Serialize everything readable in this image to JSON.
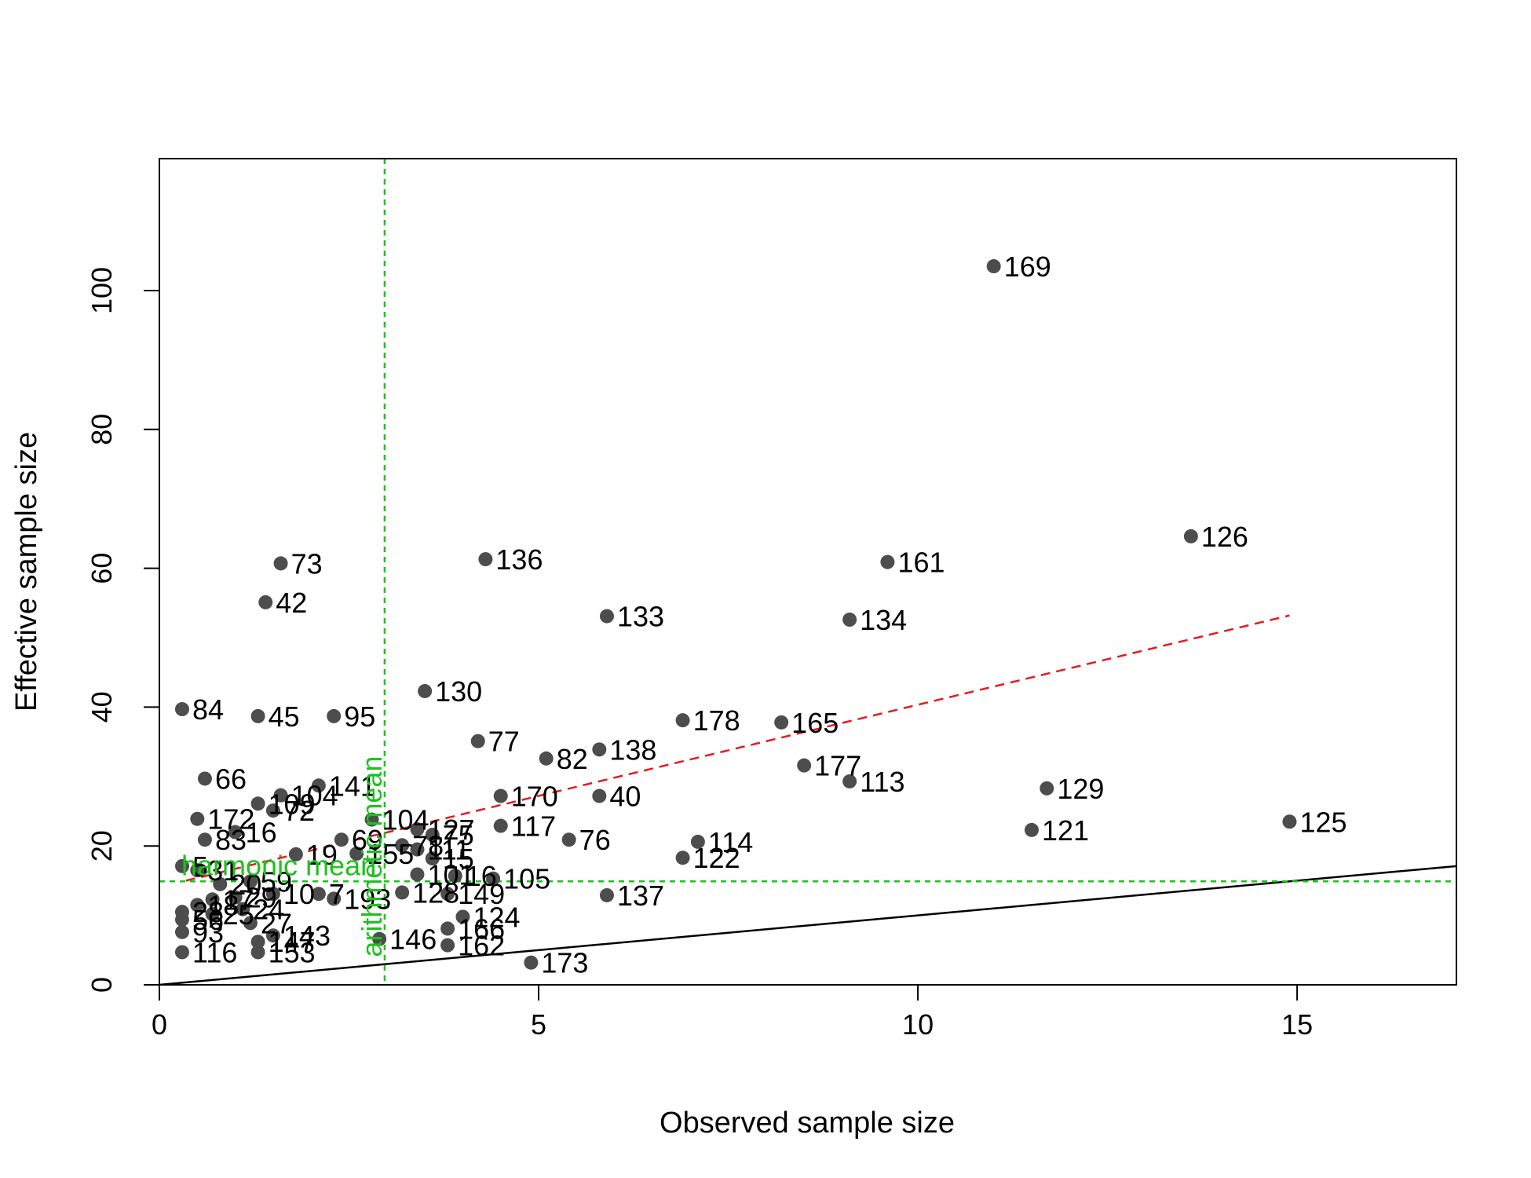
{
  "chart_data": {
    "type": "scatter",
    "title": "",
    "xlabel": "Observed sample size",
    "ylabel": "Effective sample size",
    "xlim": [
      0,
      17.1
    ],
    "ylim": [
      0,
      119
    ],
    "xticks": [
      0,
      5,
      10,
      15
    ],
    "yticks": [
      0,
      20,
      40,
      60,
      80,
      100
    ],
    "grid": false,
    "legend": "none",
    "colors": {
      "points": "#4d4d4d",
      "identity_line": "#000000",
      "trend_line": "#e8191e",
      "reference_lines": "#1ec11e"
    },
    "points": [
      {
        "label": "169",
        "x": 11.0,
        "y": 103.5
      },
      {
        "label": "126",
        "x": 13.6,
        "y": 64.6
      },
      {
        "label": "73",
        "x": 1.6,
        "y": 60.7
      },
      {
        "label": "136",
        "x": 4.3,
        "y": 61.3
      },
      {
        "label": "161",
        "x": 9.6,
        "y": 60.9
      },
      {
        "label": "42",
        "x": 1.4,
        "y": 55.1
      },
      {
        "label": "133",
        "x": 5.9,
        "y": 53.1
      },
      {
        "label": "134",
        "x": 9.1,
        "y": 52.6
      },
      {
        "label": "130",
        "x": 3.5,
        "y": 42.3
      },
      {
        "label": "84",
        "x": 0.3,
        "y": 39.7
      },
      {
        "label": "45",
        "x": 1.3,
        "y": 38.7
      },
      {
        "label": "95",
        "x": 2.3,
        "y": 38.7
      },
      {
        "label": "178",
        "x": 6.9,
        "y": 38.1
      },
      {
        "label": "165",
        "x": 8.2,
        "y": 37.8
      },
      {
        "label": "77",
        "x": 4.2,
        "y": 35.1
      },
      {
        "label": "138",
        "x": 5.8,
        "y": 33.9
      },
      {
        "label": "82",
        "x": 5.1,
        "y": 32.6
      },
      {
        "label": "177",
        "x": 8.5,
        "y": 31.6
      },
      {
        "label": "66",
        "x": 0.6,
        "y": 29.7
      },
      {
        "label": "113",
        "x": 9.1,
        "y": 29.3
      },
      {
        "label": "141",
        "x": 2.1,
        "y": 28.7
      },
      {
        "label": "129",
        "x": 11.7,
        "y": 28.3
      },
      {
        "label": "104",
        "x": 1.6,
        "y": 27.3
      },
      {
        "label": "170",
        "x": 4.5,
        "y": 27.2
      },
      {
        "label": "40",
        "x": 5.8,
        "y": 27.2
      },
      {
        "label": "109",
        "x": 1.3,
        "y": 26.1
      },
      {
        "label": "172",
        "x": 0.5,
        "y": 23.9
      },
      {
        "label": "72",
        "x": 1.5,
        "y": 25.1
      },
      {
        "label": "125",
        "x": 14.9,
        "y": 23.5
      },
      {
        "label": "104",
        "x": 2.8,
        "y": 23.8
      },
      {
        "label": "117",
        "x": 4.5,
        "y": 22.9
      },
      {
        "label": "121",
        "x": 11.5,
        "y": 22.3
      },
      {
        "label": "127",
        "x": 3.4,
        "y": 22.4
      },
      {
        "label": "75",
        "x": 3.6,
        "y": 21.6
      },
      {
        "label": "76",
        "x": 5.4,
        "y": 20.9
      },
      {
        "label": "114",
        "x": 7.1,
        "y": 20.6
      },
      {
        "label": "16",
        "x": 1.0,
        "y": 22.0
      },
      {
        "label": "69",
        "x": 2.4,
        "y": 20.9
      },
      {
        "label": "122",
        "x": 6.9,
        "y": 18.3
      },
      {
        "label": "83",
        "x": 0.6,
        "y": 20.9
      },
      {
        "label": "78",
        "x": 3.2,
        "y": 20.1
      },
      {
        "label": "111",
        "x": 3.4,
        "y": 19.5
      },
      {
        "label": "15",
        "x": 3.6,
        "y": 18.2
      },
      {
        "label": "19",
        "x": 1.8,
        "y": 18.8
      },
      {
        "label": "155",
        "x": 2.6,
        "y": 18.9
      },
      {
        "label": "101",
        "x": 3.4,
        "y": 15.9
      },
      {
        "label": "105",
        "x": 4.4,
        "y": 15.3
      },
      {
        "label": "16",
        "x": 3.9,
        "y": 15.7
      },
      {
        "label": "5",
        "x": 0.3,
        "y": 17.1
      },
      {
        "label": "31",
        "x": 0.5,
        "y": 16.5
      },
      {
        "label": "59",
        "x": 1.2,
        "y": 14.9
      },
      {
        "label": "20",
        "x": 0.8,
        "y": 14.5
      },
      {
        "label": "137",
        "x": 5.9,
        "y": 12.9
      },
      {
        "label": "7",
        "x": 2.1,
        "y": 13.1
      },
      {
        "label": "193",
        "x": 2.3,
        "y": 12.4
      },
      {
        "label": "128",
        "x": 3.2,
        "y": 13.3
      },
      {
        "label": "149",
        "x": 3.8,
        "y": 13.1
      },
      {
        "label": "10",
        "x": 1.5,
        "y": 13.1
      },
      {
        "label": "29",
        "x": 1.0,
        "y": 12.6
      },
      {
        "label": "17",
        "x": 0.7,
        "y": 12.3
      },
      {
        "label": "18",
        "x": 0.5,
        "y": 11.5
      },
      {
        "label": "24",
        "x": 1.1,
        "y": 10.9
      },
      {
        "label": "28",
        "x": 0.3,
        "y": 10.5
      },
      {
        "label": "25",
        "x": 0.7,
        "y": 10.2
      },
      {
        "label": "124",
        "x": 4.0,
        "y": 9.8
      },
      {
        "label": "27",
        "x": 1.2,
        "y": 8.9
      },
      {
        "label": "56",
        "x": 0.3,
        "y": 9.4
      },
      {
        "label": "166",
        "x": 3.8,
        "y": 8.1
      },
      {
        "label": "93",
        "x": 0.3,
        "y": 7.6
      },
      {
        "label": "143",
        "x": 1.5,
        "y": 7.1
      },
      {
        "label": "146",
        "x": 2.9,
        "y": 6.6
      },
      {
        "label": "147",
        "x": 1.3,
        "y": 6.2
      },
      {
        "label": "162",
        "x": 3.8,
        "y": 5.7
      },
      {
        "label": "116",
        "x": 0.3,
        "y": 4.7
      },
      {
        "label": "153",
        "x": 1.3,
        "y": 4.7
      },
      {
        "label": "173",
        "x": 4.9,
        "y": 3.2
      }
    ],
    "identity_line": {
      "from": [
        0,
        0
      ],
      "to": [
        17.1,
        17.1
      ],
      "style": "solid"
    },
    "trend_line": {
      "from": [
        0.35,
        15.0
      ],
      "to": [
        14.9,
        53.2
      ],
      "style": "dashed"
    },
    "reference_lines": [
      {
        "orientation": "horizontal",
        "value": 14.9,
        "label": "harmonic mean",
        "style": "dashed"
      },
      {
        "orientation": "vertical",
        "value": 2.97,
        "label": "arithmetic mean",
        "style": "dashed"
      }
    ]
  }
}
